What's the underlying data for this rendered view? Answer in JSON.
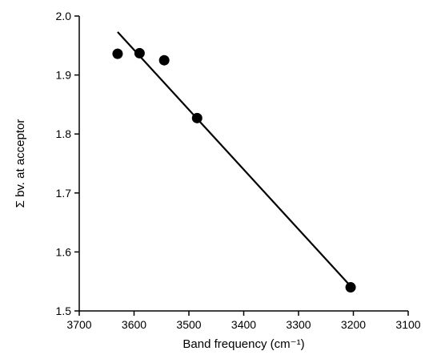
{
  "chart_data": {
    "type": "scatter",
    "title": "",
    "xlabel": "Band frequency (cm⁻¹)",
    "ylabel": "Σ bv. at acceptor",
    "xlim": [
      3700,
      3100
    ],
    "ylim": [
      1.5,
      2.0
    ],
    "x_reversed": true,
    "x_ticks": [
      3700,
      3600,
      3500,
      3400,
      3300,
      3200,
      3100
    ],
    "y_ticks": [
      1.5,
      1.6,
      1.7,
      1.8,
      1.9,
      2.0
    ],
    "y_tick_labels": [
      "1.5",
      "1.6",
      "1.7",
      "1.8",
      "1.9",
      "2.0"
    ],
    "grid": false,
    "points": [
      {
        "x": 3630,
        "y": 1.936
      },
      {
        "x": 3590,
        "y": 1.937
      },
      {
        "x": 3545,
        "y": 1.925
      },
      {
        "x": 3485,
        "y": 1.827
      },
      {
        "x": 3205,
        "y": 1.54
      }
    ],
    "fit_line": {
      "x": [
        3630,
        3205
      ],
      "y": [
        1.973,
        1.542
      ]
    },
    "colors": {
      "marker": "#000000",
      "line": "#000000",
      "axis": "#000000"
    }
  }
}
